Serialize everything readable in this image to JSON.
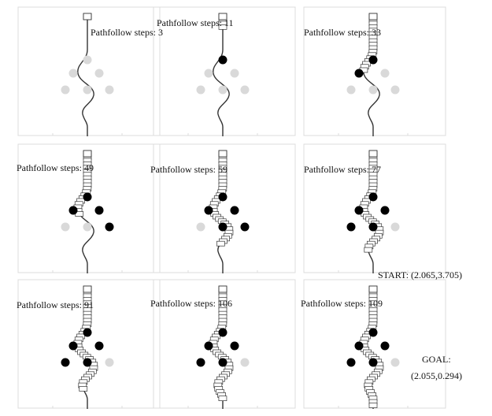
{
  "panels": [
    {
      "caption": "Pathfollow steps: 3",
      "path_progress": 0.0,
      "filled_obstacles": []
    },
    {
      "caption": "Pathfollow steps: 11",
      "path_progress": 0.1,
      "filled_obstacles": [
        "o1"
      ]
    },
    {
      "caption": "Pathfollow steps: 33",
      "path_progress": 0.45,
      "filled_obstacles": [
        "o1",
        "o2"
      ]
    },
    {
      "caption": "Pathfollow steps: 49",
      "path_progress": 0.5,
      "filled_obstacles": [
        "o1",
        "o2",
        "o3",
        "o6"
      ]
    },
    {
      "caption": "Pathfollow steps: 59",
      "path_progress": 0.8,
      "filled_obstacles": [
        "o1",
        "o2",
        "o3",
        "o5",
        "o6"
      ]
    },
    {
      "caption": "Pathfollow steps: 77",
      "path_progress": 0.85,
      "filled_obstacles": [
        "o1",
        "o2",
        "o3",
        "o4",
        "o5"
      ]
    },
    {
      "caption": "Pathfollow steps: 91",
      "path_progress": 0.88,
      "filled_obstacles": [
        "o1",
        "o2",
        "o3",
        "o4",
        "o5"
      ]
    },
    {
      "caption": "Pathfollow steps: 106",
      "path_progress": 0.94,
      "filled_obstacles": [
        "o1",
        "o2",
        "o3",
        "o4",
        "o5"
      ]
    },
    {
      "caption": "Pathfollow steps: 109",
      "path_progress": 1.0,
      "filled_obstacles": [
        "o1",
        "o2",
        "o3",
        "o4",
        "o5"
      ]
    }
  ],
  "start_label": "START: (2.065,3.705)",
  "goal_label": "GOAL:",
  "goal_coords": "(2.055,0.294)",
  "colors": {
    "frame": "#dcdcdc",
    "path": "#333333",
    "obstacle_filled": "#000000",
    "obstacle_empty": "#d9d9d9"
  }
}
